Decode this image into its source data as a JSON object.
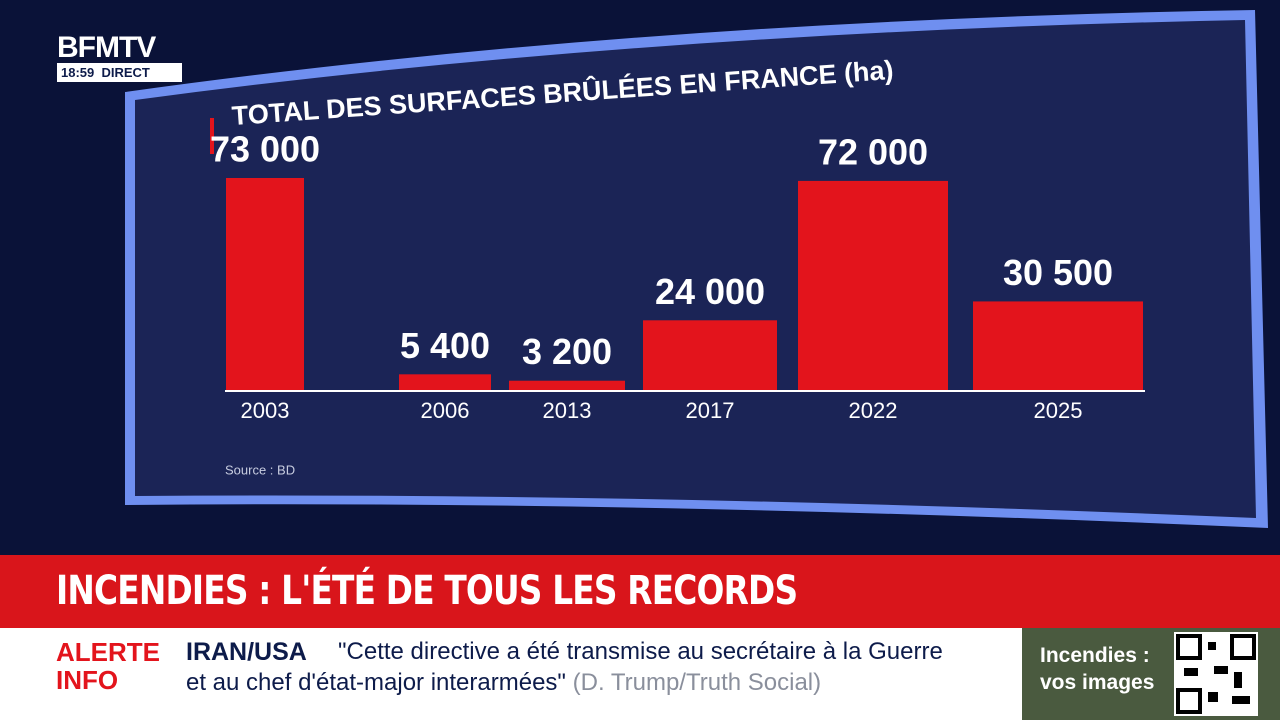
{
  "chart_data": {
    "type": "bar",
    "title": "TOTAL DES SURFACES BRÛLÉES EN FRANCE (ha)",
    "categories": [
      "2003",
      "2006",
      "2013",
      "2017",
      "2022",
      "2025"
    ],
    "values": [
      73000,
      5400,
      3200,
      24000,
      72000,
      30500
    ],
    "value_labels": [
      "73 000",
      "5 400",
      "3 200",
      "24 000",
      "72 000",
      "30 500"
    ],
    "color": "#e3141c",
    "source": "Source : BD"
  },
  "header": {
    "channel": "BFMTV",
    "time": "18:59",
    "live": "DIRECT"
  },
  "banner": {
    "headline": "INCENDIES : L'ÉTÉ DE TOUS LES RECORDS"
  },
  "ticker": {
    "alert": [
      "ALERTE",
      "INFO"
    ],
    "topic": "IRAN/USA",
    "quote_line1": "\"Cette directive a été transmise au secrétaire à la Guerre",
    "quote_line2": "et au chef d'état-major interarmées\"",
    "source": "(D. Trump/Truth Social)"
  },
  "promo": {
    "line1": "Incendies :",
    "line2": "vos images"
  }
}
